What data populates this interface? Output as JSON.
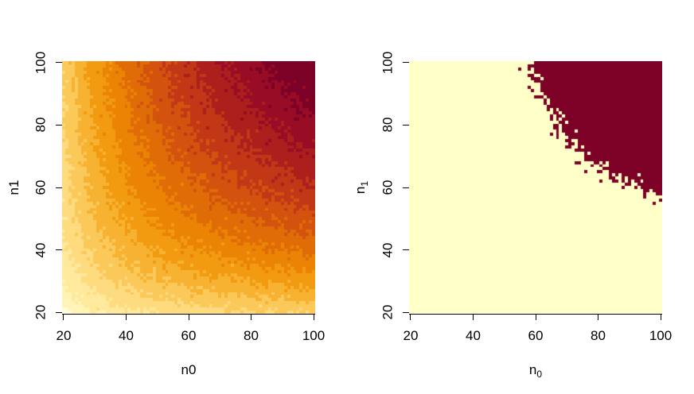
{
  "figure": {
    "background": "#FFFFFF",
    "text_color": "#000000",
    "description": "Two R-style image() heatmaps of simulated statistical power over per-group sample sizes"
  },
  "chart_data": [
    {
      "id": "power-surface",
      "type": "heatmap",
      "title": "",
      "xlabel": "n0",
      "ylabel": "n1",
      "x_range": [
        20,
        100
      ],
      "y_range": [
        20,
        100
      ],
      "x_ticks": [
        20,
        40,
        60,
        80,
        100
      ],
      "y_ticks": [
        20,
        40,
        60,
        80,
        100
      ],
      "grid_step": 1,
      "legend": "none",
      "value_model": {
        "type": "power_vs_harmonic_sample_size",
        "formula": "m = 1/(1/n0+1/n1); v=(m-m_min)/(m_max-m_min); p = base + span*v^exponent + noise",
        "m_min": 10,
        "m_max": 50,
        "base": 0.28,
        "span": 0.68,
        "exponent": 0.75,
        "noise_sd": 0.012,
        "seed": 101
      },
      "levels": [
        0.3,
        0.35,
        0.4,
        0.45,
        0.5,
        0.55,
        0.6,
        0.65,
        0.7,
        0.75,
        0.8,
        0.85,
        0.9
      ],
      "palette": [
        "#FFFDD8",
        "#FFF4B6",
        "#FFE99C",
        "#FEDB7E",
        "#FBC959",
        "#F8B231",
        "#F29B11",
        "#EB8405",
        "#E06C07",
        "#D3520E",
        "#C23817",
        "#AC1F1D",
        "#980C25",
        "#7C0127"
      ]
    },
    {
      "id": "power-threshold-map",
      "type": "heatmap",
      "title": "",
      "xlabel": {
        "base": "n",
        "sub": "0"
      },
      "ylabel": {
        "base": "n",
        "sub": "1"
      },
      "x_range": [
        20,
        100
      ],
      "y_range": [
        20,
        100
      ],
      "x_ticks": [
        20,
        40,
        60,
        80,
        100
      ],
      "y_ticks": [
        20,
        40,
        60,
        80,
        100
      ],
      "grid_step": 1,
      "legend": "none",
      "value_model": {
        "type": "power_vs_harmonic_sample_size",
        "formula": "m = 1/(1/n0+1/n1); v=(m-m_min)/(m_max-m_min); p = base + span*v^exponent + noise",
        "m_min": 10,
        "m_max": 50,
        "base": 0.28,
        "span": 0.68,
        "exponent": 0.75,
        "noise_sd": 0.012,
        "seed": 202
      },
      "threshold": 0.78,
      "colors": {
        "below": "#FFFFC8",
        "above": "#7D0126"
      }
    }
  ]
}
